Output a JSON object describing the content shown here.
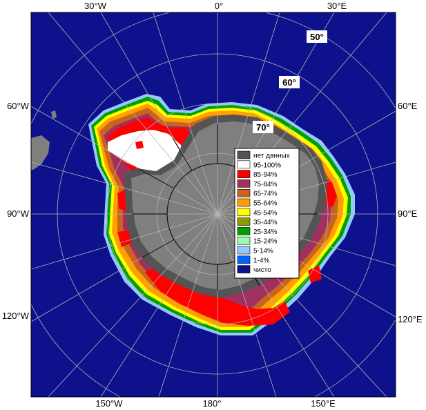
{
  "map": {
    "longitude_labels": {
      "top": [
        "30°W",
        "0°",
        "30°E"
      ],
      "left": [
        "60°W",
        "90°W",
        "120°W"
      ],
      "right": [
        "60°E",
        "90°E",
        "120°E"
      ],
      "bottom": [
        "150°W",
        "180°",
        "150°E"
      ]
    },
    "latitude_labels": [
      "50°",
      "60°",
      "70°"
    ],
    "colors": {
      "ocean": "#0d128c",
      "land": "#7f7f7f",
      "no_data": "#545454",
      "grid": "#b4b4b4",
      "border": "#000000"
    }
  },
  "legend": {
    "items": [
      {
        "label": "нет данных",
        "color": "#545454"
      },
      {
        "label": "95-100%",
        "color": "#ffffff"
      },
      {
        "label": "85-94%",
        "color": "#ff0000"
      },
      {
        "label": "75-84%",
        "color": "#a0305f"
      },
      {
        "label": "65-74%",
        "color": "#c8641e"
      },
      {
        "label": "55-64%",
        "color": "#ffa000"
      },
      {
        "label": "45-54%",
        "color": "#ffff00"
      },
      {
        "label": "35-44%",
        "color": "#8c9b00"
      },
      {
        "label": "25-34%",
        "color": "#00a000"
      },
      {
        "label": "15-24%",
        "color": "#96ffaa"
      },
      {
        "label": "5-14%",
        "color": "#96c8ff"
      },
      {
        "label": "1-4%",
        "color": "#0064ff"
      },
      {
        "label": "чисто",
        "color": "#0d128c"
      }
    ]
  }
}
